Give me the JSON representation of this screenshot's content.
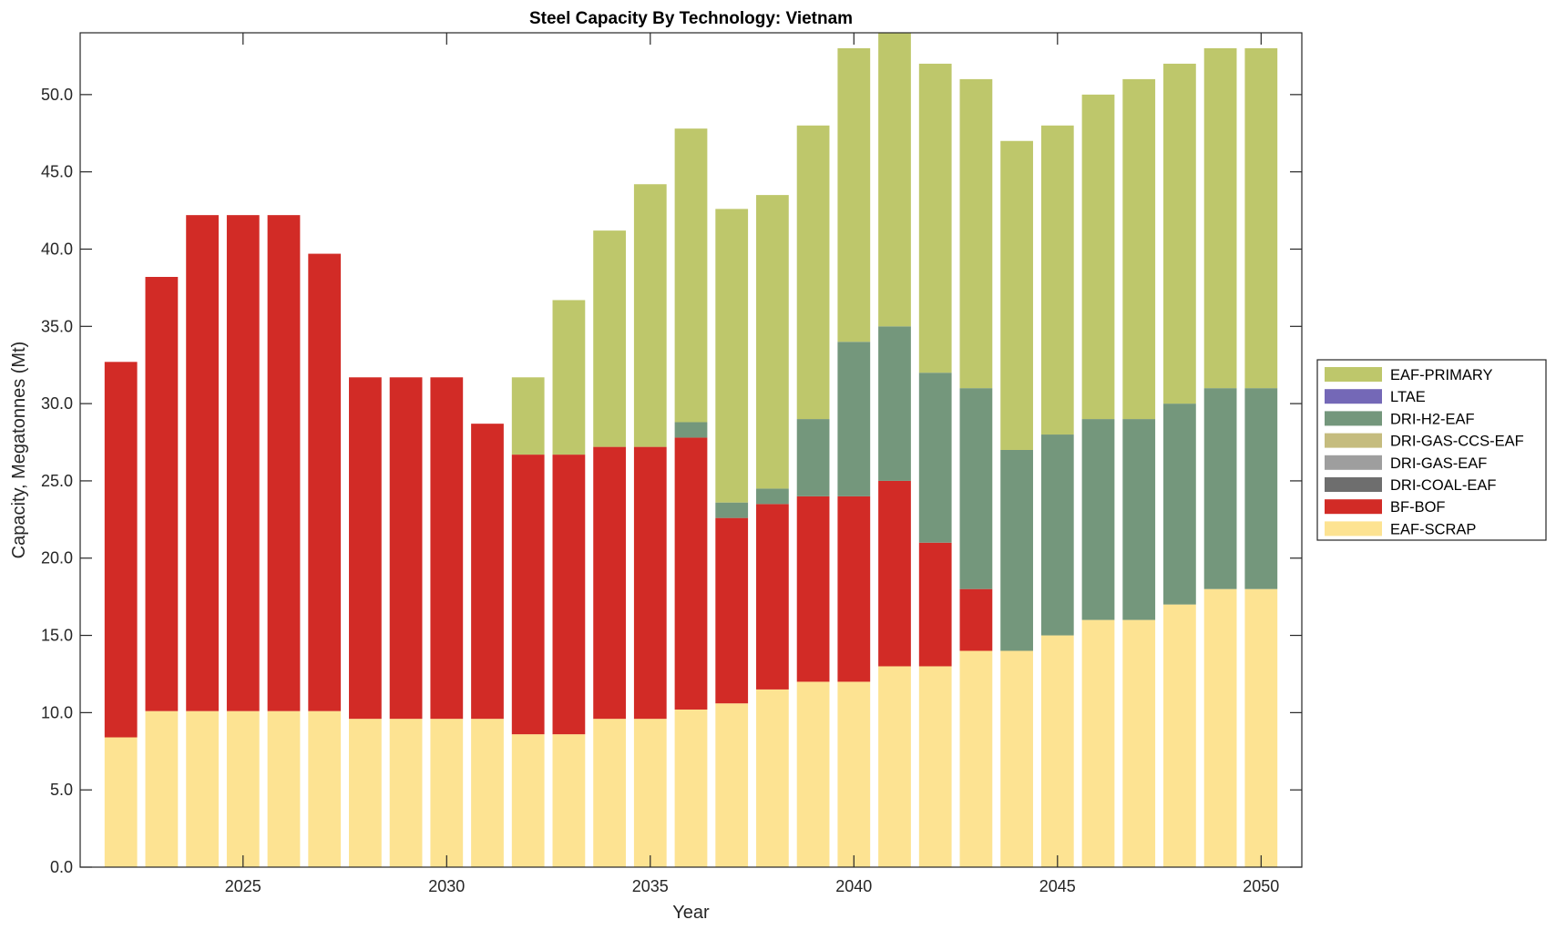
{
  "chart_data": {
    "type": "bar",
    "stacked": true,
    "title": "Steel Capacity By Technology: Vietnam",
    "xlabel": "Year",
    "ylabel": "Capacity, Megatonnes (Mt)",
    "xlim": [
      2021,
      2051
    ],
    "ylim": [
      0,
      54
    ],
    "xticks": [
      2025,
      2030,
      2035,
      2040,
      2045,
      2050
    ],
    "yticks": [
      0,
      5,
      10,
      15,
      20,
      25,
      30,
      35,
      40,
      45,
      50
    ],
    "ytick_labels": [
      "0.0",
      "5.0",
      "10.0",
      "15.0",
      "20.0",
      "25.0",
      "30.0",
      "35.0",
      "40.0",
      "45.0",
      "50.0"
    ],
    "grid": false,
    "legend_position": "right-outside",
    "categories": [
      2022,
      2023,
      2024,
      2025,
      2026,
      2027,
      2028,
      2029,
      2030,
      2031,
      2032,
      2033,
      2034,
      2035,
      2036,
      2037,
      2038,
      2039,
      2040,
      2041,
      2042,
      2043,
      2044,
      2045,
      2046,
      2047,
      2048,
      2049,
      2050
    ],
    "series": [
      {
        "name": "EAF-SCRAP",
        "color": "#FDE392",
        "values": [
          8.4,
          10.1,
          10.1,
          10.1,
          10.1,
          10.1,
          9.6,
          9.6,
          9.6,
          9.6,
          8.6,
          8.6,
          9.6,
          9.6,
          10.2,
          10.6,
          11.5,
          12,
          12,
          13,
          13,
          14,
          14,
          15,
          16,
          16,
          17,
          18,
          18
        ]
      },
      {
        "name": "BF-BOF",
        "color": "#D22B26",
        "values": [
          24.3,
          28.1,
          32.1,
          32.1,
          32.1,
          29.6,
          22.1,
          22.1,
          22.1,
          19.1,
          18.1,
          18.1,
          17.6,
          17.6,
          17.6,
          12.0,
          12.0,
          12,
          12,
          12,
          8,
          4,
          0,
          0,
          0,
          0,
          0,
          0,
          0
        ]
      },
      {
        "name": "DRI-COAL-EAF",
        "color": "#6E6E6E",
        "values": [
          0,
          0,
          0,
          0,
          0,
          0,
          0,
          0,
          0,
          0,
          0,
          0,
          0,
          0,
          0,
          0,
          0,
          0,
          0,
          0,
          0,
          0,
          0,
          0,
          0,
          0,
          0,
          0,
          0
        ]
      },
      {
        "name": "DRI-GAS-EAF",
        "color": "#9E9E9E",
        "values": [
          0,
          0,
          0,
          0,
          0,
          0,
          0,
          0,
          0,
          0,
          0,
          0,
          0,
          0,
          0,
          0,
          0,
          0,
          0,
          0,
          0,
          0,
          0,
          0,
          0,
          0,
          0,
          0,
          0
        ]
      },
      {
        "name": "DRI-GAS-CCS-EAF",
        "color": "#C5BC7E",
        "values": [
          0,
          0,
          0,
          0,
          0,
          0,
          0,
          0,
          0,
          0,
          0,
          0,
          0,
          0,
          0,
          0,
          0,
          0,
          0,
          0,
          0,
          0,
          0,
          0,
          0,
          0,
          0,
          0,
          0
        ]
      },
      {
        "name": "DRI-H2-EAF",
        "color": "#74977C",
        "values": [
          0,
          0,
          0,
          0,
          0,
          0,
          0,
          0,
          0,
          0,
          0,
          0,
          0,
          0,
          1.0,
          1.0,
          1.0,
          5,
          10,
          10,
          11,
          13,
          13,
          13,
          13,
          13,
          13,
          13,
          13
        ]
      },
      {
        "name": "LTAE",
        "color": "#7468B7",
        "values": [
          0,
          0,
          0,
          0,
          0,
          0,
          0,
          0,
          0,
          0,
          0,
          0,
          0,
          0,
          0,
          0,
          0,
          0,
          0,
          0,
          0,
          0,
          0,
          0,
          0,
          0,
          0,
          0,
          0
        ]
      },
      {
        "name": "EAF-PRIMARY",
        "color": "#BEC76B",
        "values": [
          0,
          0,
          0,
          0,
          0,
          0,
          0,
          0,
          0,
          0,
          5.0,
          10.0,
          14.0,
          17.0,
          19.0,
          19.0,
          19.0,
          19,
          19,
          19,
          20,
          20,
          20,
          20,
          21,
          22,
          22,
          22,
          22
        ]
      }
    ],
    "legend_order": [
      "EAF-PRIMARY",
      "LTAE",
      "DRI-H2-EAF",
      "DRI-GAS-CCS-EAF",
      "DRI-GAS-EAF",
      "DRI-COAL-EAF",
      "BF-BOF",
      "EAF-SCRAP"
    ]
  }
}
